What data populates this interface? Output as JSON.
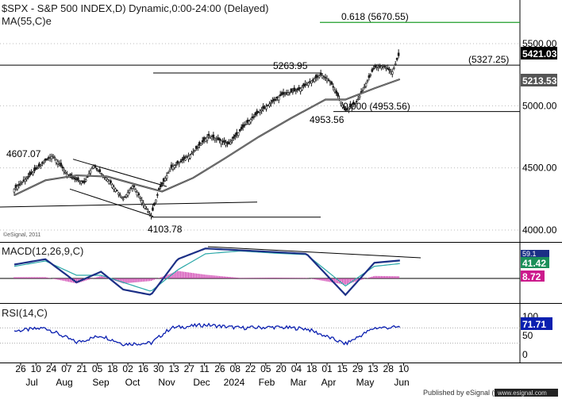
{
  "header": {
    "title": "$SPX - S&P 500 INDEX,D) Dynamic,0:00-24:00 (Delayed)",
    "subtitle": "MA(55,C)e"
  },
  "panels": {
    "macd_label": "MACD(12,26,9,C)",
    "rsi_label": "RSI(14,C)",
    "watermark": "©eSignal, 2011"
  },
  "annotations": {
    "fib_target": "0.618 (5670.55)",
    "resistance": "(5327.25)",
    "peak": "5263.95",
    "fib_base": "0.000 (4953.56)",
    "low_apr": "4953.56",
    "high_jul": "4607.07",
    "low_oct": "4103.78"
  },
  "footer": "Published by eSignal (www.esignal.com)",
  "colors": {
    "background": "#ffffff",
    "price_candle": "#1a1a1a",
    "ma_line": "#444444",
    "fib_line": "#1e9e2a",
    "macd_line": "#1b2f86",
    "signal_line": "#2aa8a8",
    "histogram": "#cc33aa",
    "rsi_line": "#0a1fb0",
    "last_price_tag": "#000000",
    "macd_tag": "#1b8f5a",
    "signal_tag": "#cc1a8c",
    "rsi_tag": "#0a1fb0"
  },
  "chart_data": [
    {
      "type": "line",
      "title": "$SPX - S&P 500 INDEX,D) Dynamic,0:00-24:00 (Delayed)",
      "ylim": [
        3930,
        5700
      ],
      "yticks": [
        4000,
        4500,
        5000,
        5500
      ],
      "ytick_labels": [
        "4000.00",
        "4500.00",
        "5000.00",
        "5500.00"
      ],
      "last_value_tags": [
        "5421.03",
        "5213.53"
      ],
      "series": [
        {
          "name": "$SPX",
          "style": "candles",
          "x": [
            "2023-06-26",
            "2023-07-10",
            "2023-07-24",
            "2023-07-31",
            "2023-08-14",
            "2023-08-28",
            "2023-09-05",
            "2023-09-20",
            "2023-10-02",
            "2023-10-11",
            "2023-10-27",
            "2023-11-03",
            "2023-11-14",
            "2023-12-01",
            "2023-12-18",
            "2024-01-05",
            "2024-01-19",
            "2024-02-01",
            "2024-02-22",
            "2024-03-08",
            "2024-03-28",
            "2024-04-05",
            "2024-04-19",
            "2024-04-29",
            "2024-05-15",
            "2024-05-23",
            "2024-05-31",
            "2024-06-07"
          ],
          "y": [
            4330,
            4440,
            4560,
            4600,
            4430,
            4380,
            4520,
            4390,
            4250,
            4360,
            4110,
            4320,
            4500,
            4600,
            4760,
            4690,
            4840,
            4950,
            5090,
            5130,
            5250,
            5200,
            4960,
            5030,
            5310,
            5320,
            5270,
            5430
          ]
        },
        {
          "name": "MA(55,C)e",
          "x": [
            "2023-06-26",
            "2023-07-24",
            "2023-08-21",
            "2023-09-18",
            "2023-10-16",
            "2023-11-06",
            "2023-12-04",
            "2024-01-02",
            "2024-02-01",
            "2024-03-01",
            "2024-04-01",
            "2024-04-19",
            "2024-05-15",
            "2024-06-07"
          ],
          "y": [
            4280,
            4400,
            4440,
            4430,
            4360,
            4310,
            4420,
            4580,
            4750,
            4900,
            5050,
            5050,
            5140,
            5213.53
          ]
        }
      ],
      "levels": [
        {
          "label": "0.618 (5670.55)",
          "y": 5670.55
        },
        {
          "label": "(5327.25)",
          "y": 5327.25
        },
        {
          "label": "0.000 (4953.56)",
          "y": 4953.56
        }
      ]
    },
    {
      "type": "line",
      "title": "MACD(12,26,9,C)",
      "last_value_tags": [
        "59.1",
        "41.42",
        "8.72"
      ],
      "series": [
        {
          "name": "MACD",
          "x": [
            "2023-06-26",
            "2023-07-24",
            "2023-08-21",
            "2023-09-12",
            "2023-10-02",
            "2023-10-27",
            "2023-11-20",
            "2023-12-15",
            "2024-01-15",
            "2024-02-15",
            "2024-03-15",
            "2024-04-19",
            "2024-05-15",
            "2024-06-07"
          ],
          "y": [
            30,
            45,
            -20,
            10,
            -40,
            -55,
            45,
            75,
            70,
            65,
            60,
            -55,
            35,
            41.42
          ]
        },
        {
          "name": "Signal",
          "x": [
            "2023-06-26",
            "2023-07-24",
            "2023-08-21",
            "2023-09-12",
            "2023-10-02",
            "2023-10-27",
            "2023-11-20",
            "2023-12-15",
            "2024-01-15",
            "2024-02-15",
            "2024-03-15",
            "2024-04-19",
            "2024-05-15",
            "2024-06-07"
          ],
          "y": [
            25,
            40,
            0,
            0,
            -20,
            -45,
            15,
            60,
            68,
            62,
            58,
            -30,
            25,
            32.7
          ]
        }
      ]
    },
    {
      "type": "line",
      "title": "RSI(14,C)",
      "ylim": [
        0,
        100
      ],
      "yticks": [
        0,
        50,
        100
      ],
      "ytick_labels": [
        "0",
        "50",
        "100"
      ],
      "last_value_tags": [
        "71.71"
      ],
      "series": [
        {
          "name": "RSI(14,C)",
          "x": [
            "2023-06-26",
            "2023-07-24",
            "2023-08-21",
            "2023-09-12",
            "2023-10-02",
            "2023-10-27",
            "2023-11-14",
            "2023-12-15",
            "2024-01-15",
            "2024-02-15",
            "2024-03-15",
            "2024-04-19",
            "2024-05-15",
            "2024-06-07"
          ],
          "y": [
            62,
            70,
            32,
            50,
            28,
            30,
            70,
            78,
            70,
            72,
            68,
            28,
            70,
            71.71
          ]
        }
      ]
    }
  ],
  "xaxis": {
    "day_ticks": [
      "26",
      "10",
      "24",
      "07",
      "21",
      "05",
      "18",
      "02",
      "16",
      "30",
      "13",
      "27",
      "11",
      "26",
      "08",
      "22",
      "05",
      "20",
      "04",
      "18",
      "01",
      "15",
      "29",
      "13",
      "28",
      "10"
    ],
    "month_ticks": [
      "Jul",
      "Aug",
      "Sep",
      "Oct",
      "Nov",
      "Dec",
      "2024",
      "Feb",
      "Mar",
      "Apr",
      "May",
      "Jun"
    ]
  }
}
